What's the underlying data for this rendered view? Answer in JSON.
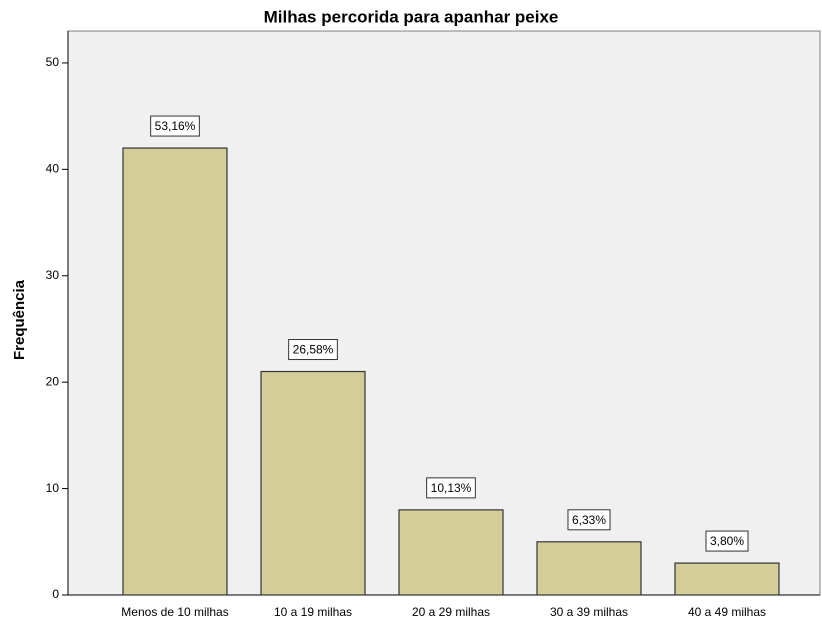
{
  "chart_data": {
    "type": "bar",
    "title": "Milhas percorida para apanhar peixe",
    "ylabel": "Frequência",
    "categories": [
      "Menos de 10 milhas",
      "10 a 19 milhas",
      "20 a 29 milhas",
      "30 a 39 milhas",
      "40 a 49 milhas"
    ],
    "values": [
      42,
      21,
      8,
      5,
      3
    ],
    "data_labels": [
      "53,16%",
      "26,58%",
      "10,13%",
      "6,33%",
      "3,80%"
    ],
    "color": "#d3ce97",
    "ylim": [
      0,
      53
    ],
    "yticks": [
      0,
      10,
      20,
      30,
      40,
      50
    ],
    "grid": false
  }
}
